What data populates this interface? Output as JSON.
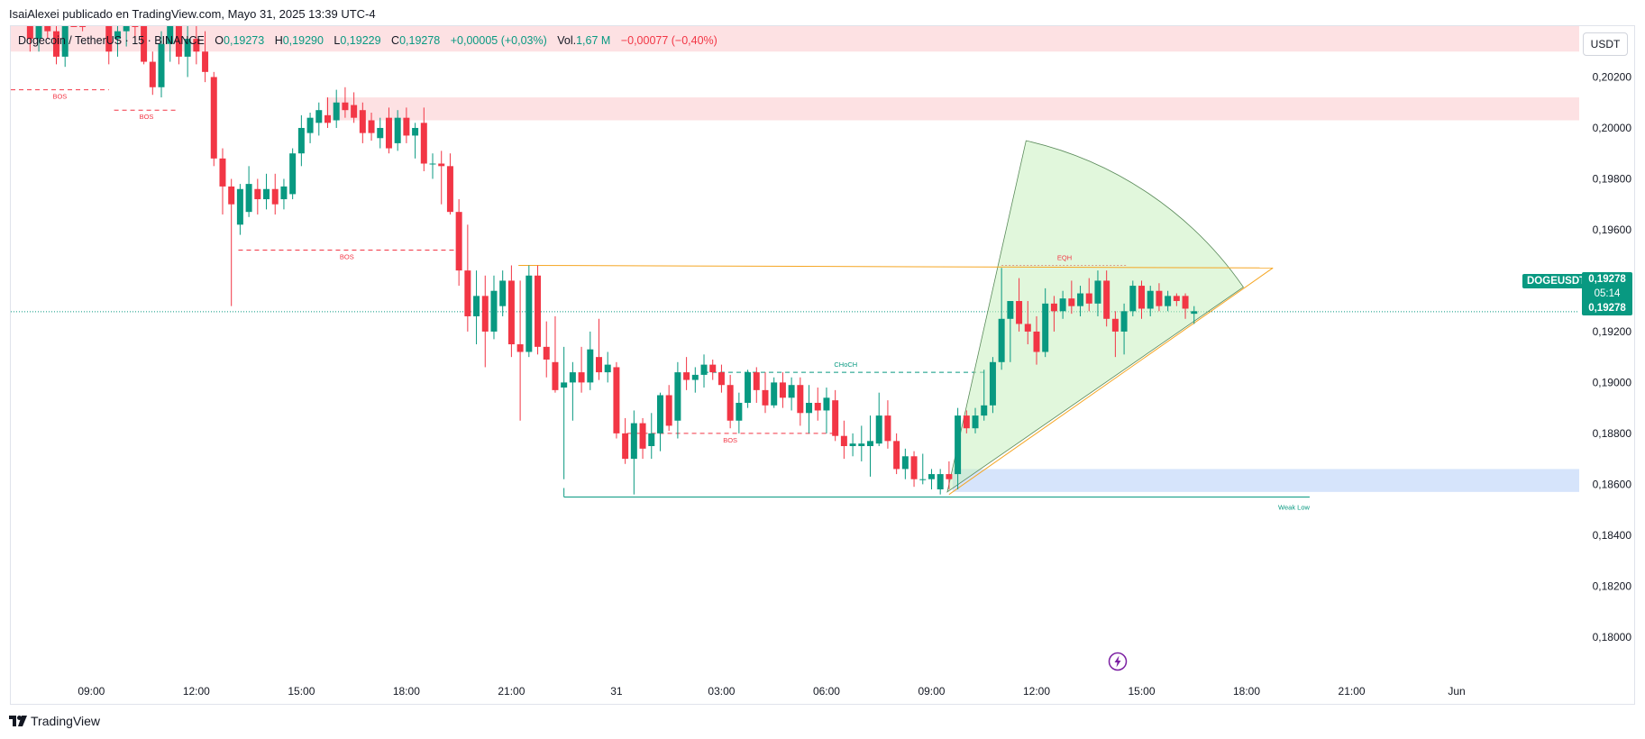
{
  "publisher_line": "IsaiAlexei publicado en TradingView.com, Mayo 31, 2025 13:39 UTC-4",
  "legend": {
    "symbol": "Dogecoin / TetherUS · 15 · BINANCE",
    "open_label": "O",
    "open": "0,19273",
    "high_label": "H",
    "high": "0,19290",
    "low_label": "L",
    "low": "0,19229",
    "close_label": "C",
    "close": "0,19278",
    "change": "+0,00005 (+0,03%)",
    "vol_label": "Vol.",
    "vol": "1,67 M",
    "vol_change": "−0,00077 (−0,40%)"
  },
  "currency_button": "USDT",
  "symbol_tag": "DOGEUSDT",
  "last_price": "0,19278",
  "countdown": "05:14",
  "footer_brand": "TradingView",
  "colors": {
    "up": "#089981",
    "down": "#f23645",
    "supply_zone": "#fde1e3",
    "demand_zone": "#d6e4fb",
    "fan_fill": "#c8f0c0",
    "trendline": "#f5a623"
  },
  "chart_data": {
    "type": "candlestick",
    "title": "Dogecoin / TetherUS · 15 · BINANCE",
    "ylim": [
      0.1784,
      0.204
    ],
    "y_ticks": [
      "0,20200",
      "0,20000",
      "0,19800",
      "0,19600",
      "0,19400",
      "0,19200",
      "0,19000",
      "0,18800",
      "0,18600",
      "0,18400",
      "0,18200",
      "0,18000"
    ],
    "y_tick_values": [
      0.202,
      0.2,
      0.198,
      0.196,
      0.194,
      0.192,
      0.19,
      0.188,
      0.186,
      0.184,
      0.182,
      0.18
    ],
    "x_ticks": [
      "09:00",
      "12:00",
      "15:00",
      "18:00",
      "21:00",
      "31",
      "03:00",
      "06:00",
      "09:00",
      "12:00",
      "15:00",
      "18:00",
      "21:00",
      "Jun"
    ],
    "x_tick_hours": [
      0,
      3,
      6,
      9,
      12,
      15,
      18,
      21,
      24,
      27,
      30,
      33,
      36,
      39
    ],
    "x_range_hours": [
      -2.3,
      42.5
    ],
    "candles": [
      {
        "t": -1.75,
        "o": 0.204,
        "h": 0.2046,
        "l": 0.203,
        "c": 0.2035
      },
      {
        "t": -1.5,
        "o": 0.2035,
        "h": 0.2048,
        "l": 0.203,
        "c": 0.2042
      },
      {
        "t": -1.25,
        "o": 0.2042,
        "h": 0.205,
        "l": 0.2035,
        "c": 0.2038
      },
      {
        "t": -1.0,
        "o": 0.2038,
        "h": 0.2046,
        "l": 0.2025,
        "c": 0.2028
      },
      {
        "t": -0.75,
        "o": 0.2028,
        "h": 0.2052,
        "l": 0.2024,
        "c": 0.2048
      },
      {
        "t": -0.5,
        "o": 0.2048,
        "h": 0.2055,
        "l": 0.204,
        "c": 0.2044
      },
      {
        "t": -0.25,
        "o": 0.2044,
        "h": 0.205,
        "l": 0.2038,
        "c": 0.2042
      },
      {
        "t": 0.5,
        "o": 0.204,
        "h": 0.2046,
        "l": 0.2025,
        "c": 0.203
      },
      {
        "t": 0.75,
        "o": 0.2035,
        "h": 0.2042,
        "l": 0.2028,
        "c": 0.2038
      },
      {
        "t": 1.0,
        "o": 0.2038,
        "h": 0.205,
        "l": 0.2032,
        "c": 0.2045
      },
      {
        "t": 1.25,
        "o": 0.2045,
        "h": 0.205,
        "l": 0.2035,
        "c": 0.204
      },
      {
        "t": 1.5,
        "o": 0.204,
        "h": 0.2045,
        "l": 0.2025,
        "c": 0.2026
      },
      {
        "t": 1.75,
        "o": 0.2026,
        "h": 0.203,
        "l": 0.2013,
        "c": 0.2016
      },
      {
        "t": 2.0,
        "o": 0.2016,
        "h": 0.2038,
        "l": 0.2012,
        "c": 0.2033
      },
      {
        "t": 2.25,
        "o": 0.2033,
        "h": 0.2044,
        "l": 0.2026,
        "c": 0.204
      },
      {
        "t": 2.5,
        "o": 0.204,
        "h": 0.2044,
        "l": 0.2025,
        "c": 0.2028
      },
      {
        "t": 2.75,
        "o": 0.2028,
        "h": 0.204,
        "l": 0.202,
        "c": 0.2035
      },
      {
        "t": 3.0,
        "o": 0.2035,
        "h": 0.2042,
        "l": 0.2025,
        "c": 0.203
      },
      {
        "t": 3.25,
        "o": 0.203,
        "h": 0.2038,
        "l": 0.2018,
        "c": 0.2022
      },
      {
        "t": 3.5,
        "o": 0.202,
        "h": 0.2022,
        "l": 0.1985,
        "c": 0.1988
      },
      {
        "t": 3.75,
        "o": 0.1988,
        "h": 0.1992,
        "l": 0.1966,
        "c": 0.1977
      },
      {
        "t": 4.0,
        "o": 0.1977,
        "h": 0.198,
        "l": 0.193,
        "c": 0.197
      },
      {
        "t": 4.25,
        "o": 0.1962,
        "h": 0.1978,
        "l": 0.1958,
        "c": 0.1976
      },
      {
        "t": 4.5,
        "o": 0.1967,
        "h": 0.1985,
        "l": 0.1965,
        "c": 0.1978
      },
      {
        "t": 4.75,
        "o": 0.1976,
        "h": 0.198,
        "l": 0.1966,
        "c": 0.1972
      },
      {
        "t": 5.0,
        "o": 0.1972,
        "h": 0.1982,
        "l": 0.1968,
        "c": 0.1976
      },
      {
        "t": 5.25,
        "o": 0.1976,
        "h": 0.1982,
        "l": 0.1966,
        "c": 0.197
      },
      {
        "t": 5.5,
        "o": 0.1972,
        "h": 0.198,
        "l": 0.1968,
        "c": 0.1977
      },
      {
        "t": 5.75,
        "o": 0.1974,
        "h": 0.1992,
        "l": 0.1972,
        "c": 0.199
      },
      {
        "t": 6.0,
        "o": 0.199,
        "h": 0.2005,
        "l": 0.1985,
        "c": 0.2
      },
      {
        "t": 6.25,
        "o": 0.1998,
        "h": 0.2006,
        "l": 0.1994,
        "c": 0.2004
      },
      {
        "t": 6.5,
        "o": 0.2002,
        "h": 0.201,
        "l": 0.1997,
        "c": 0.2007
      },
      {
        "t": 6.75,
        "o": 0.2005,
        "h": 0.2012,
        "l": 0.2,
        "c": 0.2002
      },
      {
        "t": 7.0,
        "o": 0.2003,
        "h": 0.2015,
        "l": 0.2,
        "c": 0.201
      },
      {
        "t": 7.25,
        "o": 0.201,
        "h": 0.2016,
        "l": 0.2004,
        "c": 0.2007
      },
      {
        "t": 7.5,
        "o": 0.2009,
        "h": 0.2014,
        "l": 0.2002,
        "c": 0.2004
      },
      {
        "t": 7.75,
        "o": 0.2007,
        "h": 0.201,
        "l": 0.1994,
        "c": 0.1998
      },
      {
        "t": 8.0,
        "o": 0.2003,
        "h": 0.2006,
        "l": 0.1995,
        "c": 0.1998
      },
      {
        "t": 8.25,
        "o": 0.1996,
        "h": 0.2004,
        "l": 0.1992,
        "c": 0.2
      },
      {
        "t": 8.5,
        "o": 0.2004,
        "h": 0.2008,
        "l": 0.199,
        "c": 0.1992
      },
      {
        "t": 8.75,
        "o": 0.1994,
        "h": 0.2007,
        "l": 0.1991,
        "c": 0.2004
      },
      {
        "t": 9.0,
        "o": 0.2004,
        "h": 0.2008,
        "l": 0.1994,
        "c": 0.1997
      },
      {
        "t": 9.25,
        "o": 0.1997,
        "h": 0.2002,
        "l": 0.1988,
        "c": 0.2
      },
      {
        "t": 9.5,
        "o": 0.2002,
        "h": 0.2008,
        "l": 0.1983,
        "c": 0.1986
      },
      {
        "t": 9.75,
        "o": 0.1986,
        "h": 0.199,
        "l": 0.198,
        "c": 0.1986
      },
      {
        "t": 10.0,
        "o": 0.1986,
        "h": 0.1991,
        "l": 0.197,
        "c": 0.1985
      },
      {
        "t": 10.25,
        "o": 0.1985,
        "h": 0.199,
        "l": 0.1966,
        "c": 0.1967
      },
      {
        "t": 10.5,
        "o": 0.1967,
        "h": 0.1972,
        "l": 0.1938,
        "c": 0.1944
      },
      {
        "t": 10.75,
        "o": 0.1944,
        "h": 0.1962,
        "l": 0.192,
        "c": 0.1926
      },
      {
        "t": 11.0,
        "o": 0.1926,
        "h": 0.1944,
        "l": 0.1915,
        "c": 0.1934
      },
      {
        "t": 11.25,
        "o": 0.1934,
        "h": 0.1942,
        "l": 0.1906,
        "c": 0.192
      },
      {
        "t": 11.5,
        "o": 0.192,
        "h": 0.1942,
        "l": 0.1917,
        "c": 0.1936
      },
      {
        "t": 11.75,
        "o": 0.193,
        "h": 0.1944,
        "l": 0.1926,
        "c": 0.194
      },
      {
        "t": 12.0,
        "o": 0.194,
        "h": 0.1946,
        "l": 0.191,
        "c": 0.1915
      },
      {
        "t": 12.25,
        "o": 0.1915,
        "h": 0.194,
        "l": 0.1885,
        "c": 0.1912
      },
      {
        "t": 12.5,
        "o": 0.1912,
        "h": 0.1946,
        "l": 0.191,
        "c": 0.1942
      },
      {
        "t": 12.75,
        "o": 0.1942,
        "h": 0.1946,
        "l": 0.1911,
        "c": 0.1914
      },
      {
        "t": 13.0,
        "o": 0.1914,
        "h": 0.1924,
        "l": 0.1902,
        "c": 0.1909
      },
      {
        "t": 13.25,
        "o": 0.1908,
        "h": 0.1926,
        "l": 0.1896,
        "c": 0.1897
      },
      {
        "t": 13.5,
        "o": 0.1898,
        "h": 0.1914,
        "l": 0.1862,
        "c": 0.19
      },
      {
        "t": 13.75,
        "o": 0.19,
        "h": 0.1908,
        "l": 0.1885,
        "c": 0.1904
      },
      {
        "t": 14.0,
        "o": 0.1904,
        "h": 0.1914,
        "l": 0.1896,
        "c": 0.19
      },
      {
        "t": 14.25,
        "o": 0.19,
        "h": 0.192,
        "l": 0.1897,
        "c": 0.1913
      },
      {
        "t": 14.5,
        "o": 0.191,
        "h": 0.1925,
        "l": 0.1901,
        "c": 0.1904
      },
      {
        "t": 14.75,
        "o": 0.1904,
        "h": 0.1912,
        "l": 0.19,
        "c": 0.1907
      },
      {
        "t": 15.0,
        "o": 0.1906,
        "h": 0.1908,
        "l": 0.1878,
        "c": 0.188
      },
      {
        "t": 15.25,
        "o": 0.188,
        "h": 0.1886,
        "l": 0.1868,
        "c": 0.187
      },
      {
        "t": 15.5,
        "o": 0.187,
        "h": 0.1889,
        "l": 0.1856,
        "c": 0.1884
      },
      {
        "t": 15.75,
        "o": 0.1884,
        "h": 0.1886,
        "l": 0.187,
        "c": 0.1874
      },
      {
        "t": 16.0,
        "o": 0.1875,
        "h": 0.1888,
        "l": 0.187,
        "c": 0.188
      },
      {
        "t": 16.25,
        "o": 0.188,
        "h": 0.1896,
        "l": 0.1873,
        "c": 0.1895
      },
      {
        "t": 16.5,
        "o": 0.1895,
        "h": 0.1899,
        "l": 0.1881,
        "c": 0.1883
      },
      {
        "t": 16.75,
        "o": 0.1885,
        "h": 0.1908,
        "l": 0.1878,
        "c": 0.1904
      },
      {
        "t": 17.0,
        "o": 0.1904,
        "h": 0.191,
        "l": 0.1897,
        "c": 0.1901
      },
      {
        "t": 17.25,
        "o": 0.1901,
        "h": 0.1906,
        "l": 0.1896,
        "c": 0.1903
      },
      {
        "t": 17.5,
        "o": 0.1903,
        "h": 0.1911,
        "l": 0.1898,
        "c": 0.1907
      },
      {
        "t": 17.75,
        "o": 0.1907,
        "h": 0.1909,
        "l": 0.1901,
        "c": 0.1904
      },
      {
        "t": 18.0,
        "o": 0.1904,
        "h": 0.1907,
        "l": 0.1896,
        "c": 0.1899
      },
      {
        "t": 18.25,
        "o": 0.1899,
        "h": 0.1903,
        "l": 0.1882,
        "c": 0.1885
      },
      {
        "t": 18.5,
        "o": 0.1885,
        "h": 0.1896,
        "l": 0.188,
        "c": 0.1892
      },
      {
        "t": 18.75,
        "o": 0.1892,
        "h": 0.1905,
        "l": 0.189,
        "c": 0.1904
      },
      {
        "t": 19.0,
        "o": 0.1904,
        "h": 0.1906,
        "l": 0.1892,
        "c": 0.1897
      },
      {
        "t": 19.25,
        "o": 0.1897,
        "h": 0.1904,
        "l": 0.1888,
        "c": 0.1891
      },
      {
        "t": 19.5,
        "o": 0.1891,
        "h": 0.1902,
        "l": 0.189,
        "c": 0.19
      },
      {
        "t": 19.75,
        "o": 0.19,
        "h": 0.1904,
        "l": 0.189,
        "c": 0.1894
      },
      {
        "t": 20.0,
        "o": 0.1894,
        "h": 0.1902,
        "l": 0.1889,
        "c": 0.1899
      },
      {
        "t": 20.25,
        "o": 0.1899,
        "h": 0.1902,
        "l": 0.1883,
        "c": 0.1888
      },
      {
        "t": 20.5,
        "o": 0.1888,
        "h": 0.1899,
        "l": 0.188,
        "c": 0.1892
      },
      {
        "t": 20.75,
        "o": 0.1892,
        "h": 0.1898,
        "l": 0.1885,
        "c": 0.1889
      },
      {
        "t": 21.0,
        "o": 0.1889,
        "h": 0.1898,
        "l": 0.188,
        "c": 0.1894
      },
      {
        "t": 21.25,
        "o": 0.1893,
        "h": 0.1897,
        "l": 0.1877,
        "c": 0.1879
      },
      {
        "t": 21.5,
        "o": 0.1879,
        "h": 0.1885,
        "l": 0.187,
        "c": 0.1875
      },
      {
        "t": 21.75,
        "o": 0.1875,
        "h": 0.188,
        "l": 0.1871,
        "c": 0.1876
      },
      {
        "t": 22.0,
        "o": 0.1875,
        "h": 0.1883,
        "l": 0.1869,
        "c": 0.1876
      },
      {
        "t": 22.25,
        "o": 0.1875,
        "h": 0.1887,
        "l": 0.1863,
        "c": 0.1877
      },
      {
        "t": 22.5,
        "o": 0.1876,
        "h": 0.1896,
        "l": 0.1875,
        "c": 0.1887
      },
      {
        "t": 22.75,
        "o": 0.1887,
        "h": 0.1893,
        "l": 0.1874,
        "c": 0.1877
      },
      {
        "t": 23.0,
        "o": 0.1877,
        "h": 0.188,
        "l": 0.1864,
        "c": 0.1866
      },
      {
        "t": 23.25,
        "o": 0.1866,
        "h": 0.1874,
        "l": 0.1862,
        "c": 0.1871
      },
      {
        "t": 23.5,
        "o": 0.1871,
        "h": 0.1873,
        "l": 0.1859,
        "c": 0.1862
      },
      {
        "t": 23.75,
        "o": 0.1862,
        "h": 0.1872,
        "l": 0.186,
        "c": 0.1862
      },
      {
        "t": 24.0,
        "o": 0.1862,
        "h": 0.1866,
        "l": 0.1858,
        "c": 0.1864
      },
      {
        "t": 24.25,
        "o": 0.1858,
        "h": 0.1866,
        "l": 0.1856,
        "c": 0.1864
      },
      {
        "t": 24.5,
        "o": 0.1864,
        "h": 0.1869,
        "l": 0.1858,
        "c": 0.1862
      },
      {
        "t": 24.75,
        "o": 0.1864,
        "h": 0.189,
        "l": 0.1858,
        "c": 0.1887
      },
      {
        "t": 25.0,
        "o": 0.1887,
        "h": 0.1889,
        "l": 0.188,
        "c": 0.1882
      },
      {
        "t": 25.25,
        "o": 0.1882,
        "h": 0.189,
        "l": 0.188,
        "c": 0.1887
      },
      {
        "t": 25.5,
        "o": 0.1887,
        "h": 0.1905,
        "l": 0.1885,
        "c": 0.1891
      },
      {
        "t": 25.75,
        "o": 0.1891,
        "h": 0.191,
        "l": 0.1888,
        "c": 0.1908
      },
      {
        "t": 26.0,
        "o": 0.1908,
        "h": 0.1945,
        "l": 0.1905,
        "c": 0.1925
      },
      {
        "t": 26.25,
        "o": 0.1925,
        "h": 0.1932,
        "l": 0.1908,
        "c": 0.1932
      },
      {
        "t": 26.5,
        "o": 0.1932,
        "h": 0.1941,
        "l": 0.192,
        "c": 0.1923
      },
      {
        "t": 26.75,
        "o": 0.1923,
        "h": 0.1932,
        "l": 0.1915,
        "c": 0.192
      },
      {
        "t": 27.0,
        "o": 0.192,
        "h": 0.1926,
        "l": 0.1907,
        "c": 0.1912
      },
      {
        "t": 27.25,
        "o": 0.1912,
        "h": 0.1937,
        "l": 0.191,
        "c": 0.1931
      },
      {
        "t": 27.5,
        "o": 0.1931,
        "h": 0.1934,
        "l": 0.192,
        "c": 0.1928
      },
      {
        "t": 27.75,
        "o": 0.1928,
        "h": 0.1936,
        "l": 0.1925,
        "c": 0.1933
      },
      {
        "t": 28.0,
        "o": 0.1933,
        "h": 0.194,
        "l": 0.1927,
        "c": 0.193
      },
      {
        "t": 28.25,
        "o": 0.193,
        "h": 0.1938,
        "l": 0.1926,
        "c": 0.1935
      },
      {
        "t": 28.5,
        "o": 0.1935,
        "h": 0.1941,
        "l": 0.1928,
        "c": 0.1931
      },
      {
        "t": 28.75,
        "o": 0.1931,
        "h": 0.1944,
        "l": 0.1926,
        "c": 0.194
      },
      {
        "t": 29.0,
        "o": 0.194,
        "h": 0.1944,
        "l": 0.1922,
        "c": 0.1925
      },
      {
        "t": 29.25,
        "o": 0.1925,
        "h": 0.1928,
        "l": 0.191,
        "c": 0.192
      },
      {
        "t": 29.5,
        "o": 0.192,
        "h": 0.1931,
        "l": 0.1911,
        "c": 0.1928
      },
      {
        "t": 29.75,
        "o": 0.1928,
        "h": 0.194,
        "l": 0.1926,
        "c": 0.1938
      },
      {
        "t": 30.0,
        "o": 0.1938,
        "h": 0.194,
        "l": 0.1925,
        "c": 0.1929
      },
      {
        "t": 30.25,
        "o": 0.1929,
        "h": 0.1938,
        "l": 0.1926,
        "c": 0.1936
      },
      {
        "t": 30.5,
        "o": 0.1936,
        "h": 0.1939,
        "l": 0.1928,
        "c": 0.193
      },
      {
        "t": 30.75,
        "o": 0.193,
        "h": 0.1936,
        "l": 0.1928,
        "c": 0.1934
      },
      {
        "t": 31.0,
        "o": 0.1934,
        "h": 0.1935,
        "l": 0.193,
        "c": 0.1932
      },
      {
        "t": 31.25,
        "o": 0.1934,
        "h": 0.1935,
        "l": 0.1925,
        "c": 0.1929
      },
      {
        "t": 31.5,
        "o": 0.1927,
        "h": 0.193,
        "l": 0.1923,
        "c": 0.1928
      }
    ],
    "zones": [
      {
        "kind": "supply",
        "t0": -2.3,
        "t1": 42.5,
        "top": 0.204,
        "bottom": 0.203
      },
      {
        "kind": "supply",
        "t0": 6.7,
        "t1": 42.5,
        "top": 0.2012,
        "bottom": 0.2003
      },
      {
        "kind": "demand",
        "t0": 24.6,
        "t1": 42.5,
        "top": 0.1866,
        "bottom": 0.1857
      }
    ],
    "levels": [
      {
        "label": "BOS",
        "kind": "bos",
        "t0": -2.3,
        "t1": 0.5,
        "price": 0.2015,
        "color": "#f23645",
        "dashed": true
      },
      {
        "label": "BOS",
        "kind": "bos",
        "t0": 0.65,
        "t1": 2.5,
        "price": 0.2007,
        "color": "#f23645",
        "dashed": true
      },
      {
        "label": "BOS",
        "kind": "bos",
        "t0": 4.2,
        "t1": 10.4,
        "price": 0.1952,
        "color": "#f23645",
        "dashed": true
      },
      {
        "label": "CHoCH",
        "kind": "choch",
        "t0": 17.5,
        "t1": 25.6,
        "price": 0.1904,
        "color": "#089981",
        "dashed": true
      },
      {
        "label": "BOS",
        "kind": "bos",
        "t0": 15.3,
        "t1": 21.2,
        "price": 0.188,
        "color": "#f23645",
        "dashed": true
      },
      {
        "label": "EQH",
        "kind": "eqh",
        "t0": 26.0,
        "t1": 29.6,
        "price": 0.1946,
        "color": "#f23645",
        "dotted": true
      },
      {
        "label": "Weak Low",
        "kind": "weak-low",
        "t0": 13.5,
        "t1": 34.8,
        "price": 0.1855,
        "color": "#089981",
        "dashed": false
      }
    ],
    "trendlines": [
      {
        "t0": 12.2,
        "p0": 0.1946,
        "t1": 33.75,
        "p1": 0.1945,
        "color": "#f5a623"
      },
      {
        "t0": 24.5,
        "p0": 0.1856,
        "t1": 33.75,
        "p1": 0.1945,
        "color": "#f5a623"
      }
    ],
    "fan": {
      "apex_t": 24.45,
      "apex_p": 0.1857,
      "edge_t": 26.7,
      "edge_p": 0.1995,
      "end_t": 33.7,
      "end_p": 0.1945
    },
    "last_price": 0.19278
  }
}
